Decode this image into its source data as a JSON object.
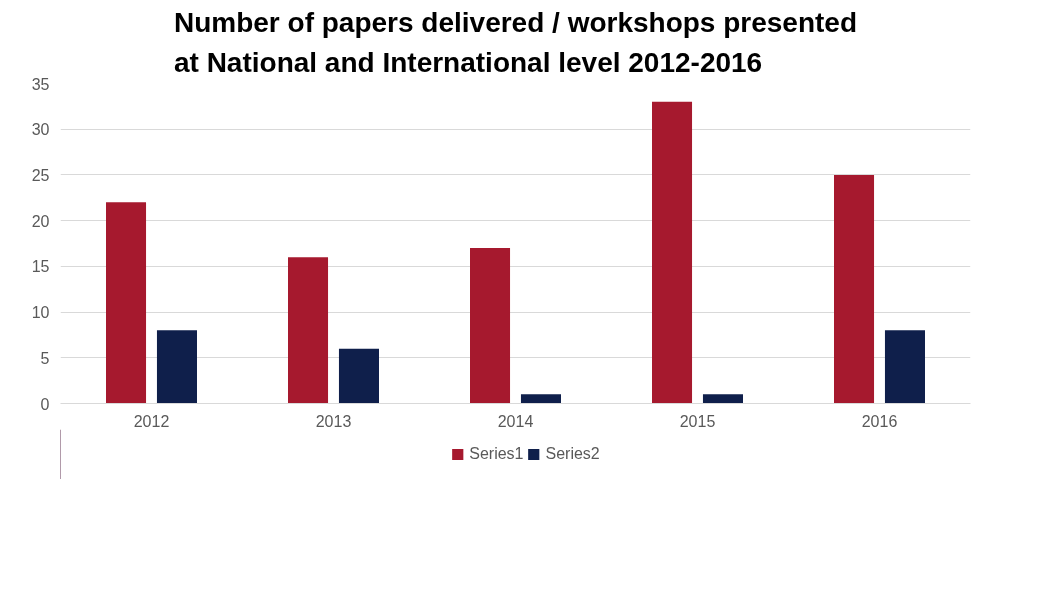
{
  "chart_data": {
    "type": "bar",
    "title": "Number of papers delivered / workshops presented at National and International level 2012-2016",
    "categories": [
      "2012",
      "2013",
      "2014",
      "2015",
      "2016"
    ],
    "series": [
      {
        "name": "Series1",
        "color": "#a6192e",
        "values": [
          22,
          16,
          17,
          33,
          25
        ]
      },
      {
        "name": "Series2",
        "color": "#0f1f4b",
        "values": [
          8,
          6,
          1,
          1,
          8
        ]
      }
    ],
    "ylim": [
      0,
      35
    ],
    "yticks": [
      0,
      5,
      10,
      15,
      20,
      25,
      30,
      35
    ],
    "grid": "y",
    "legend": "bottom"
  }
}
